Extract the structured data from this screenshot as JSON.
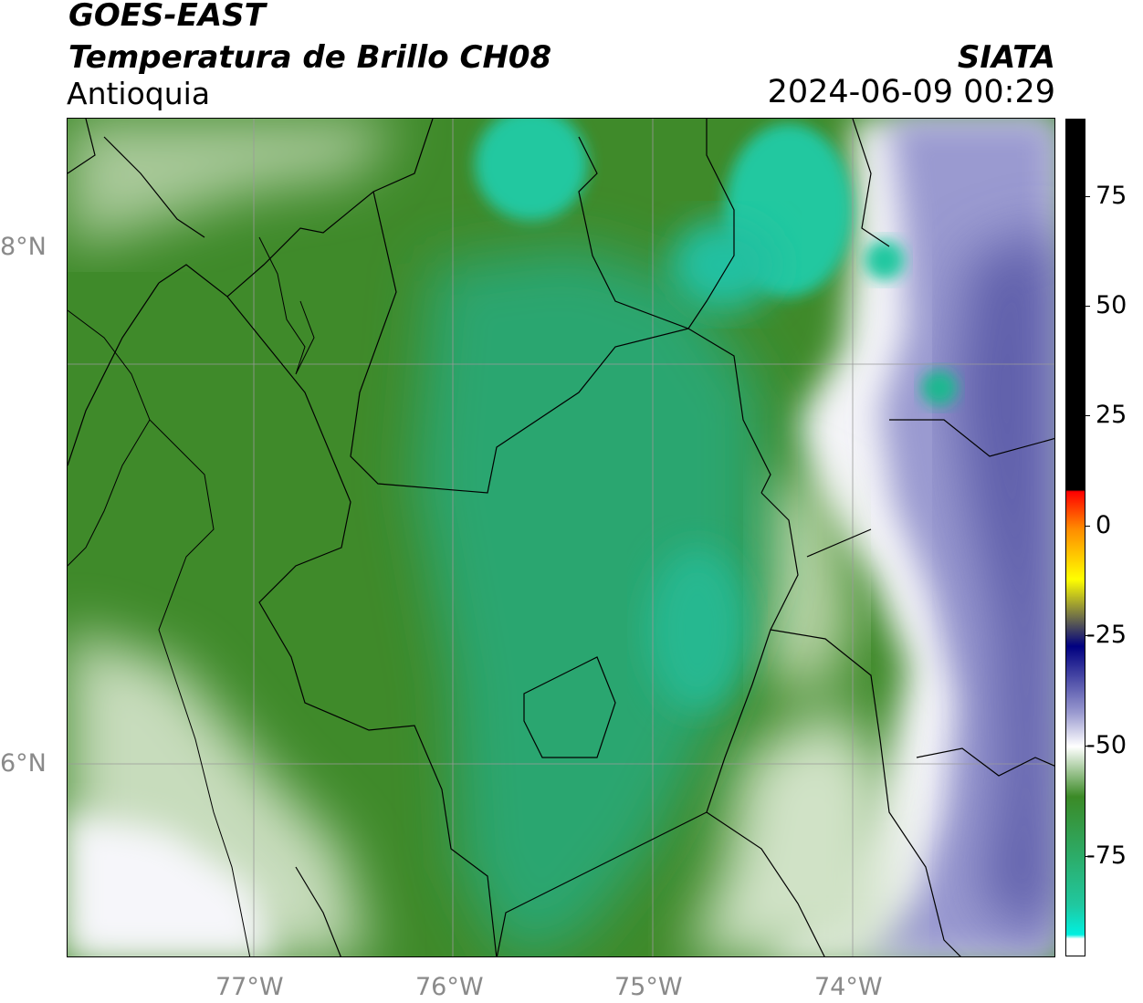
{
  "header": {
    "satellite": "GOES-EAST",
    "product": "Temperatura de Brillo CH08",
    "region": "Antioquia",
    "organization": "SIATA",
    "datetime": "2024-06-09 00:29"
  },
  "map": {
    "latitude_labels": [
      "8°N",
      "6°N"
    ],
    "longitude_labels": [
      "77°W",
      "76°W",
      "75°W",
      "74°W"
    ],
    "extent": {
      "lon_min": -77.95,
      "lon_max": -73.0,
      "lat_min": 5.0,
      "lat_max": 9.2
    }
  },
  "colorbar": {
    "labels": [
      "75",
      "50",
      "25",
      "0",
      "-25",
      "-50",
      "-75"
    ],
    "range": [
      -95,
      90
    ],
    "colors": {
      "warm_top": "#000000",
      "hot": "#ff0000",
      "orange": "#ff8c00",
      "yellow": "#ffff00",
      "navy": "#000080",
      "lavender": "#9b9bd0",
      "white": "#ffffff",
      "green": "#3b8a26",
      "teal": "#20c8a0",
      "cyan": "#00f0e0"
    }
  },
  "colors": {
    "land_green": "#3f8a2a",
    "cold_teal": "#2aa878",
    "dry_blue": "#6a6ab0",
    "pale": "#f4f4f8"
  }
}
